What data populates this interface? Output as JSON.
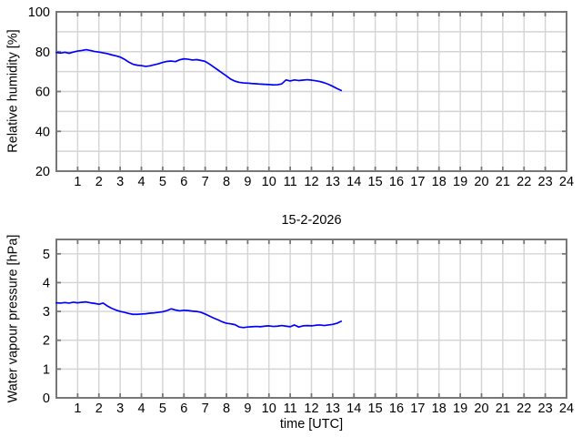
{
  "figure": {
    "background": "#ffffff",
    "frame_color": "#777777",
    "grid_color": "#d4d4d4",
    "text_color": "#000000",
    "line_color": "#0000ff"
  },
  "chart_data": [
    {
      "type": "line",
      "position": "top",
      "title": "",
      "xlabel": "",
      "ylabel": "Relative humidity [%]",
      "xlim": [
        0,
        24
      ],
      "ylim": [
        20,
        100
      ],
      "xticks": [
        1,
        2,
        3,
        4,
        5,
        6,
        7,
        8,
        9,
        10,
        11,
        12,
        13,
        14,
        15,
        16,
        17,
        18,
        19,
        20,
        21,
        22,
        23,
        24
      ],
      "yticks": [
        20,
        40,
        60,
        80,
        100
      ],
      "xgrid": [
        1,
        2,
        3,
        4,
        5,
        6,
        7,
        8,
        9,
        10,
        11,
        12,
        13,
        14,
        15,
        16,
        17,
        18,
        19,
        20,
        21,
        22,
        23
      ],
      "ygrid": [
        30,
        40,
        50,
        60,
        70,
        80,
        90
      ],
      "grid": "on",
      "legend": "none",
      "series": [
        {
          "name": "relative humidity",
          "color": "#0000ff",
          "x_start": 0,
          "x_step": 0.2,
          "values": [
            79.6,
            79.3,
            79.7,
            79.2,
            79.8,
            80.3,
            80.6,
            81.0,
            80.6,
            80.1,
            79.8,
            79.4,
            79.0,
            78.4,
            77.9,
            77.3,
            76.2,
            74.8,
            73.7,
            73.2,
            73.0,
            72.6,
            72.9,
            73.4,
            73.9,
            74.6,
            75.1,
            75.3,
            75.0,
            75.9,
            76.4,
            76.2,
            75.8,
            76.0,
            75.6,
            75.1,
            73.8,
            72.3,
            70.8,
            69.3,
            67.8,
            66.2,
            65.2,
            64.6,
            64.3,
            64.2,
            64.0,
            63.9,
            63.7,
            63.6,
            63.5,
            63.3,
            63.4,
            63.8,
            65.8,
            65.3,
            65.8,
            65.5,
            65.7,
            65.9,
            65.7,
            65.4,
            65.0,
            64.4,
            63.6,
            62.6,
            61.5,
            60.5
          ]
        }
      ]
    },
    {
      "type": "line",
      "position": "bottom",
      "title": "15-2-2026",
      "xlabel": "time [UTC]",
      "ylabel": "Water vapour pressure [hPa]",
      "xlim": [
        0,
        24
      ],
      "ylim": [
        0,
        5.5
      ],
      "xticks": [
        1,
        2,
        3,
        4,
        5,
        6,
        7,
        8,
        9,
        10,
        11,
        12,
        13,
        14,
        15,
        16,
        17,
        18,
        19,
        20,
        21,
        22,
        23,
        24
      ],
      "yticks": [
        0,
        1,
        2,
        3,
        4,
        5
      ],
      "xgrid": [
        1,
        2,
        3,
        4,
        5,
        6,
        7,
        8,
        9,
        10,
        11,
        12,
        13,
        14,
        15,
        16,
        17,
        18,
        19,
        20,
        21,
        22,
        23
      ],
      "ygrid": [
        1,
        2,
        3,
        4,
        5
      ],
      "grid": "on",
      "legend": "none",
      "series": [
        {
          "name": "water vapour pressure",
          "color": "#0000ff",
          "x_start": 0,
          "x_step": 0.2,
          "values": [
            3.3,
            3.29,
            3.31,
            3.29,
            3.32,
            3.3,
            3.32,
            3.33,
            3.3,
            3.28,
            3.25,
            3.29,
            3.19,
            3.11,
            3.05,
            3.0,
            2.97,
            2.93,
            2.9,
            2.9,
            2.91,
            2.92,
            2.94,
            2.95,
            2.97,
            2.99,
            3.03,
            3.09,
            3.05,
            3.02,
            3.04,
            3.03,
            3.01,
            3.0,
            2.97,
            2.91,
            2.84,
            2.77,
            2.71,
            2.64,
            2.59,
            2.57,
            2.54,
            2.46,
            2.44,
            2.46,
            2.47,
            2.48,
            2.47,
            2.49,
            2.5,
            2.48,
            2.49,
            2.51,
            2.49,
            2.47,
            2.53,
            2.46,
            2.5,
            2.51,
            2.5,
            2.52,
            2.53,
            2.51,
            2.53,
            2.55,
            2.59,
            2.66
          ]
        }
      ]
    }
  ]
}
